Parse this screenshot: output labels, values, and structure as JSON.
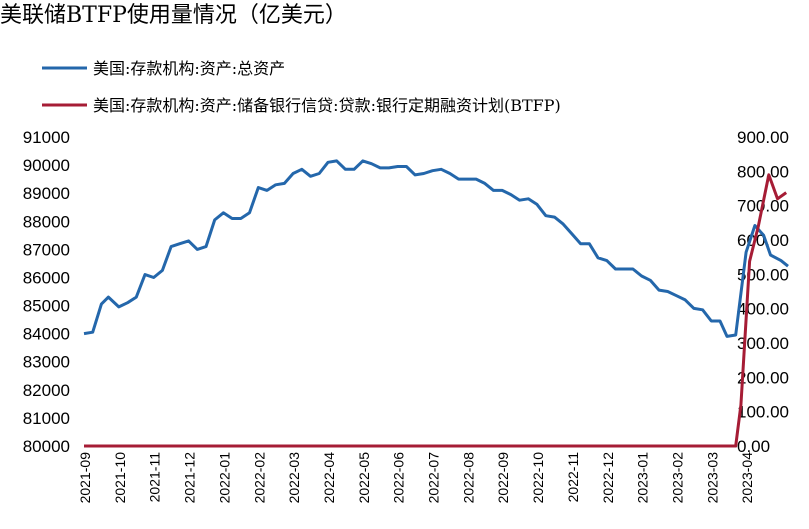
{
  "chart_data": {
    "type": "line",
    "title": "美联储BTFP使用量情况（亿美元）",
    "x": [
      "2021-09",
      "2021-10",
      "2021-11",
      "2021-12",
      "2022-01",
      "2022-02",
      "2022-03",
      "2022-04",
      "2022-05",
      "2022-06",
      "2022-07",
      "2022-08",
      "2022-09",
      "2022-10",
      "2022-11",
      "2022-12",
      "2023-01",
      "2023-02",
      "2023-03",
      "2023-04"
    ],
    "y_left": {
      "ylim": [
        80000,
        91000
      ],
      "ticks": [
        "91000",
        "90000",
        "89000",
        "88000",
        "87000",
        "86000",
        "85000",
        "84000",
        "83000",
        "82000",
        "81000",
        "80000"
      ]
    },
    "y_right": {
      "ylim": [
        0,
        900
      ],
      "ticks": [
        "900.00",
        "800.00",
        "700.00",
        "600.00",
        "500.00",
        "400.00",
        "300.00",
        "200.00",
        "100.00",
        "0.00"
      ]
    },
    "series": [
      {
        "name": "美国:存款机构:资产:总资产",
        "axis": "left",
        "color": "#2467ab",
        "points": [
          {
            "x": 0.0,
            "y": 84000
          },
          {
            "x": 0.25,
            "y": 84050
          },
          {
            "x": 0.5,
            "y": 85050
          },
          {
            "x": 0.7,
            "y": 85300
          },
          {
            "x": 1.0,
            "y": 84950
          },
          {
            "x": 1.25,
            "y": 85100
          },
          {
            "x": 1.5,
            "y": 85300
          },
          {
            "x": 1.75,
            "y": 86100
          },
          {
            "x": 2.0,
            "y": 86000
          },
          {
            "x": 2.25,
            "y": 86250
          },
          {
            "x": 2.5,
            "y": 87100
          },
          {
            "x": 2.75,
            "y": 87200
          },
          {
            "x": 3.0,
            "y": 87300
          },
          {
            "x": 3.25,
            "y": 87000
          },
          {
            "x": 3.5,
            "y": 87100
          },
          {
            "x": 3.75,
            "y": 88050
          },
          {
            "x": 4.0,
            "y": 88300
          },
          {
            "x": 4.25,
            "y": 88100
          },
          {
            "x": 4.5,
            "y": 88100
          },
          {
            "x": 4.75,
            "y": 88300
          },
          {
            "x": 5.0,
            "y": 89200
          },
          {
            "x": 5.25,
            "y": 89100
          },
          {
            "x": 5.5,
            "y": 89300
          },
          {
            "x": 5.75,
            "y": 89350
          },
          {
            "x": 6.0,
            "y": 89700
          },
          {
            "x": 6.25,
            "y": 89850
          },
          {
            "x": 6.5,
            "y": 89600
          },
          {
            "x": 6.75,
            "y": 89700
          },
          {
            "x": 7.0,
            "y": 90100
          },
          {
            "x": 7.25,
            "y": 90150
          },
          {
            "x": 7.5,
            "y": 89850
          },
          {
            "x": 7.75,
            "y": 89850
          },
          {
            "x": 8.0,
            "y": 90150
          },
          {
            "x": 8.25,
            "y": 90050
          },
          {
            "x": 8.5,
            "y": 89900
          },
          {
            "x": 8.75,
            "y": 89900
          },
          {
            "x": 9.0,
            "y": 89950
          },
          {
            "x": 9.25,
            "y": 89950
          },
          {
            "x": 9.5,
            "y": 89650
          },
          {
            "x": 9.75,
            "y": 89700
          },
          {
            "x": 10.0,
            "y": 89800
          },
          {
            "x": 10.25,
            "y": 89850
          },
          {
            "x": 10.5,
            "y": 89700
          },
          {
            "x": 10.75,
            "y": 89500
          },
          {
            "x": 11.0,
            "y": 89500
          },
          {
            "x": 11.25,
            "y": 89500
          },
          {
            "x": 11.5,
            "y": 89350
          },
          {
            "x": 11.75,
            "y": 89100
          },
          {
            "x": 12.0,
            "y": 89100
          },
          {
            "x": 12.25,
            "y": 88950
          },
          {
            "x": 12.5,
            "y": 88750
          },
          {
            "x": 12.75,
            "y": 88800
          },
          {
            "x": 13.0,
            "y": 88600
          },
          {
            "x": 13.25,
            "y": 88200
          },
          {
            "x": 13.5,
            "y": 88150
          },
          {
            "x": 13.75,
            "y": 87900
          },
          {
            "x": 14.0,
            "y": 87550
          },
          {
            "x": 14.25,
            "y": 87200
          },
          {
            "x": 14.5,
            "y": 87200
          },
          {
            "x": 14.75,
            "y": 86700
          },
          {
            "x": 15.0,
            "y": 86600
          },
          {
            "x": 15.25,
            "y": 86300
          },
          {
            "x": 15.5,
            "y": 86300
          },
          {
            "x": 15.75,
            "y": 86300
          },
          {
            "x": 16.0,
            "y": 86050
          },
          {
            "x": 16.25,
            "y": 85900
          },
          {
            "x": 16.5,
            "y": 85550
          },
          {
            "x": 16.75,
            "y": 85500
          },
          {
            "x": 17.0,
            "y": 85350
          },
          {
            "x": 17.25,
            "y": 85200
          },
          {
            "x": 17.5,
            "y": 84900
          },
          {
            "x": 17.75,
            "y": 84850
          },
          {
            "x": 18.0,
            "y": 84450
          },
          {
            "x": 18.25,
            "y": 84450
          },
          {
            "x": 18.45,
            "y": 83900
          },
          {
            "x": 18.7,
            "y": 83950
          },
          {
            "x": 19.0,
            "y": 86900
          },
          {
            "x": 19.25,
            "y": 87850
          },
          {
            "x": 19.5,
            "y": 87500
          },
          {
            "x": 19.7,
            "y": 86800
          },
          {
            "x": 20.0,
            "y": 86600
          },
          {
            "x": 20.2,
            "y": 86400
          }
        ]
      },
      {
        "name": "美国:存款机构:资产:储备银行信贷:贷款:银行定期融资计划(BTFP)",
        "axis": "right",
        "color": "#a61c35",
        "points": [
          {
            "x": 0.0,
            "y": 0
          },
          {
            "x": 18.7,
            "y": 0
          },
          {
            "x": 18.85,
            "y": 119
          },
          {
            "x": 19.1,
            "y": 538
          },
          {
            "x": 19.35,
            "y": 640
          },
          {
            "x": 19.65,
            "y": 790
          },
          {
            "x": 19.9,
            "y": 720
          },
          {
            "x": 20.15,
            "y": 738
          }
        ]
      }
    ]
  }
}
